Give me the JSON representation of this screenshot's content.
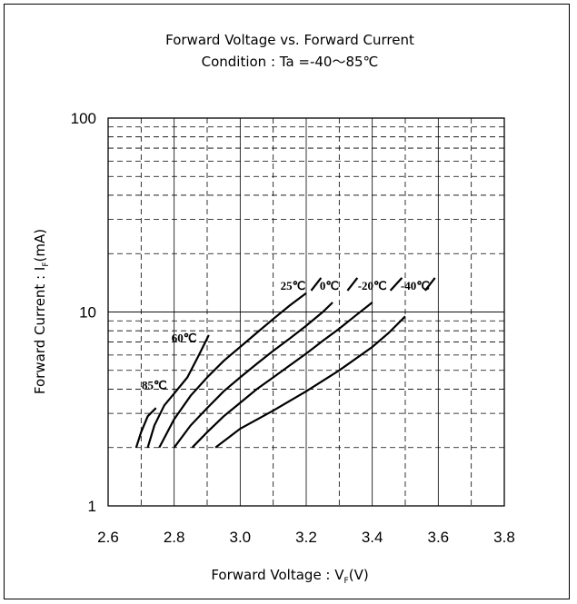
{
  "chart_data": {
    "type": "line",
    "title": "Forward Voltage vs. Forward Current",
    "subtitle": "Condition : Ta =-40～85℃",
    "xlabel": "Forward Voltage : V",
    "xlabel_sub": "F",
    "xlabel_tail": "(V)",
    "ylabel": "Forward Current : I",
    "ylabel_sub": "F",
    "ylabel_tail": "(mA)",
    "xlim": [
      2.6,
      3.8
    ],
    "ylim": [
      1,
      100
    ],
    "yscale": "log",
    "grid": true,
    "x_ticks": [
      "2.6",
      "2.8",
      "3.0",
      "3.2",
      "3.4",
      "3.6",
      "3.8"
    ],
    "y_ticks": [
      "1",
      "10",
      "100"
    ],
    "series": [
      {
        "name": "85℃",
        "x": [
          2.685,
          2.7,
          2.72,
          2.745
        ],
        "y": [
          2.0,
          2.4,
          2.9,
          3.2
        ]
      },
      {
        "name": "60℃",
        "x": [
          2.72,
          2.74,
          2.77,
          2.8,
          2.84,
          2.875,
          2.905
        ],
        "y": [
          2.0,
          2.6,
          3.3,
          3.8,
          4.6,
          6.0,
          7.6
        ]
      },
      {
        "name": "25℃",
        "x": [
          2.755,
          2.8,
          2.85,
          2.9,
          2.95,
          3.0,
          3.05,
          3.1,
          3.15,
          3.2
        ],
        "y": [
          2.0,
          2.8,
          3.7,
          4.6,
          5.6,
          6.6,
          7.8,
          9.2,
          10.8,
          12.5
        ]
      },
      {
        "name": "0℃",
        "x": [
          2.8,
          2.85,
          2.9,
          2.95,
          3.0,
          3.05,
          3.1,
          3.15,
          3.2,
          3.25,
          3.28
        ],
        "y": [
          2.0,
          2.6,
          3.2,
          3.9,
          4.6,
          5.4,
          6.3,
          7.3,
          8.5,
          10.0,
          11.2
        ]
      },
      {
        "name": "-20℃",
        "x": [
          2.855,
          2.9,
          2.95,
          3.0,
          3.05,
          3.1,
          3.15,
          3.2,
          3.25,
          3.3,
          3.35,
          3.4
        ],
        "y": [
          2.0,
          2.4,
          2.9,
          3.4,
          4.0,
          4.6,
          5.3,
          6.1,
          7.1,
          8.2,
          9.6,
          11.2
        ]
      },
      {
        "name": "-40℃",
        "x": [
          2.925,
          3.0,
          3.1,
          3.2,
          3.3,
          3.4,
          3.45,
          3.5
        ],
        "y": [
          2.0,
          2.5,
          3.1,
          3.9,
          5.0,
          6.6,
          7.8,
          9.5
        ]
      }
    ]
  }
}
